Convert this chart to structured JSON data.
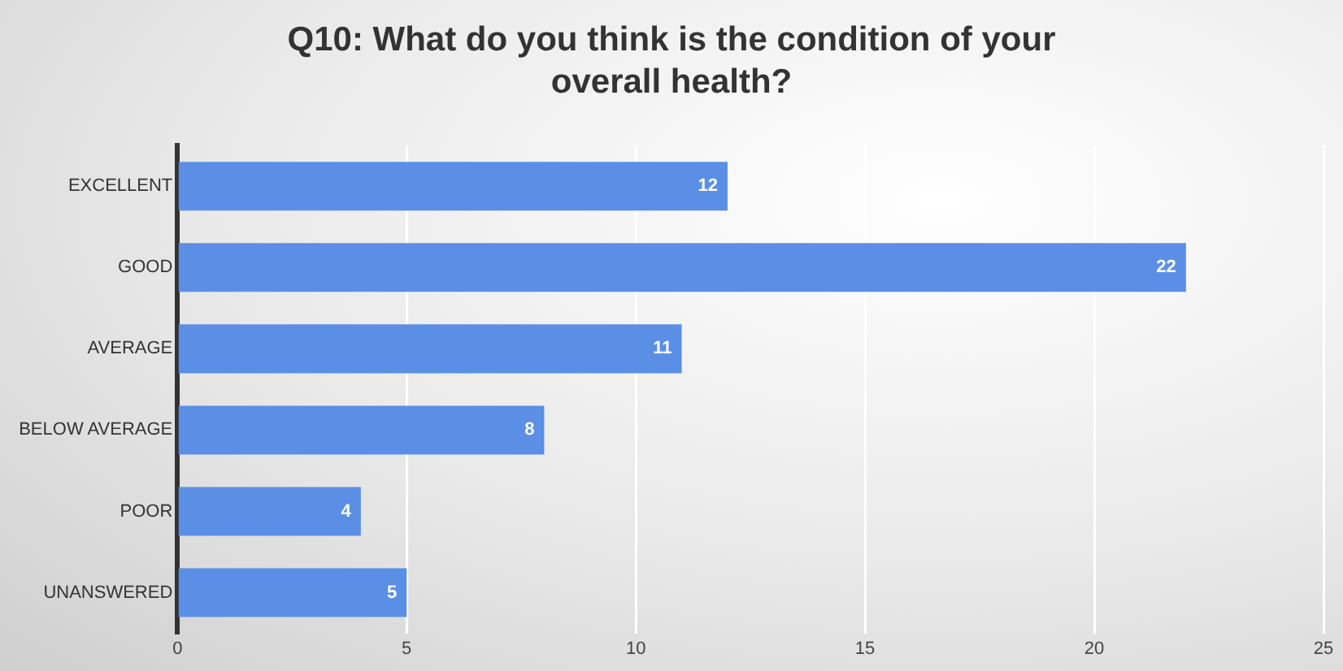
{
  "chart_data": {
    "type": "bar",
    "orientation": "horizontal",
    "title": "Q10: What do you think is the condition of your overall health?",
    "categories": [
      "EXCELLENT",
      "GOOD",
      "AVERAGE",
      "BELOW AVERAGE",
      "POOR",
      "UNANSWERED"
    ],
    "values": [
      12,
      22,
      11,
      8,
      4,
      5
    ],
    "color": "#5b8fe6",
    "xlim": [
      0,
      25
    ],
    "xticks": [
      0,
      5,
      10,
      15,
      20,
      25
    ],
    "grid": "x",
    "data_labels": true
  }
}
